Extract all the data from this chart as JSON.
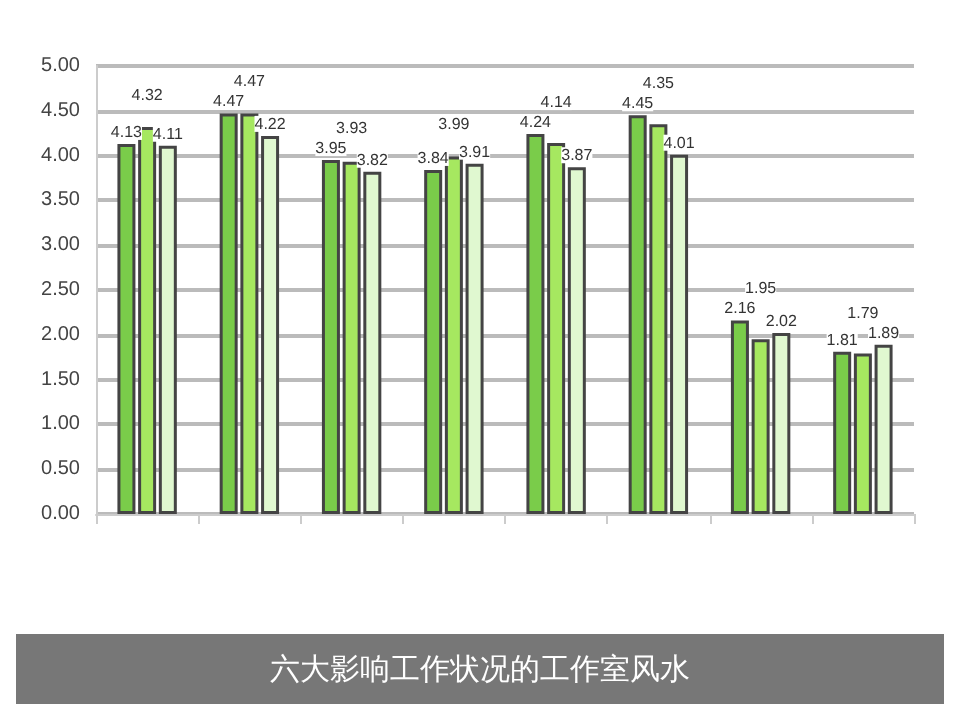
{
  "chart_data": {
    "type": "bar",
    "title": "六大影响工作状况的工作室风水",
    "categories": [
      null,
      null,
      null,
      null,
      null,
      null,
      null,
      null
    ],
    "series": [
      {
        "color": "#7acc4a",
        "values": [
          4.13,
          4.47,
          3.95,
          3.84,
          4.24,
          4.45,
          2.16,
          1.81
        ]
      },
      {
        "color": "#a6e860",
        "values": [
          4.32,
          4.47,
          3.93,
          3.99,
          4.14,
          4.35,
          1.95,
          1.79
        ]
      },
      {
        "color": "#e0f8d0",
        "values": [
          4.11,
          4.22,
          3.82,
          3.91,
          3.87,
          4.01,
          2.02,
          1.89
        ]
      }
    ],
    "ylim": [
      0,
      5
    ],
    "yticks": [
      {
        "value": 0,
        "label": "0.00"
      },
      {
        "value": 0.5,
        "label": "0.50"
      },
      {
        "value": 1,
        "label": "1.00"
      },
      {
        "value": 1.5,
        "label": "1.50"
      },
      {
        "value": 2,
        "label": "2.00"
      },
      {
        "value": 2.5,
        "label": "2.50"
      },
      {
        "value": 3,
        "label": "3.00"
      },
      {
        "value": 3.5,
        "label": "3.50"
      },
      {
        "value": 4,
        "label": "4.00"
      },
      {
        "value": 4.5,
        "label": "4.50"
      },
      {
        "value": 5,
        "label": "5.00"
      }
    ],
    "grid": "y",
    "data_labels": true
  }
}
